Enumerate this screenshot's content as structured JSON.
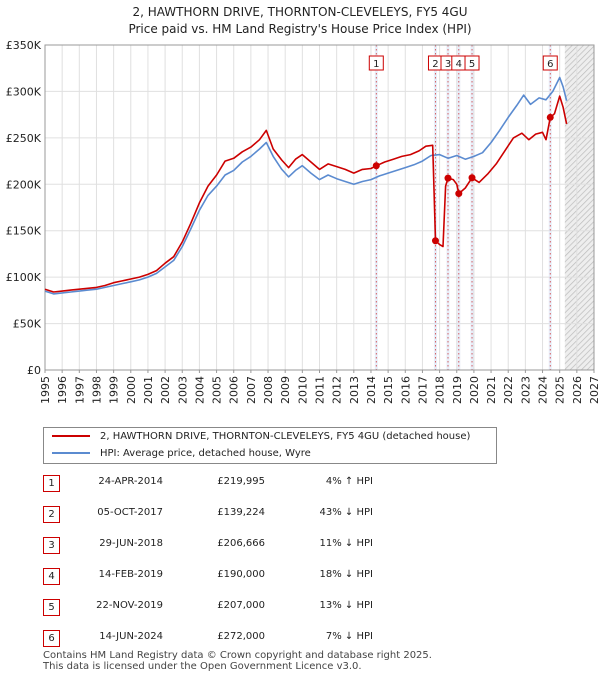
{
  "title_line1": "2, HAWTHORN DRIVE, THORNTON-CLEVELEYS, FY5 4GU",
  "title_line2": "Price paid vs. HM Land Registry's House Price Index (HPI)",
  "chart_data": {
    "type": "line",
    "xlim": [
      1995,
      2027
    ],
    "ylim": [
      0,
      350000
    ],
    "y_ticks": [
      0,
      50000,
      100000,
      150000,
      200000,
      250000,
      300000,
      350000
    ],
    "y_tick_labels": [
      "£0",
      "£50K",
      "£100K",
      "£150K",
      "£200K",
      "£250K",
      "£300K",
      "£350K"
    ],
    "x_ticks": [
      1995,
      1996,
      1997,
      1998,
      1999,
      2000,
      2001,
      2002,
      2003,
      2004,
      2005,
      2006,
      2007,
      2008,
      2009,
      2010,
      2011,
      2012,
      2013,
      2014,
      2015,
      2016,
      2017,
      2018,
      2019,
      2020,
      2021,
      2022,
      2023,
      2024,
      2025,
      2026,
      2027
    ],
    "x_tick_labels": [
      "1995",
      "1996",
      "1997",
      "1998",
      "1999",
      "2000",
      "2001",
      "2002",
      "2003",
      "2004",
      "2005",
      "2006",
      "2007",
      "2008",
      "2009",
      "2010",
      "2011",
      "2012",
      "2013",
      "2014",
      "2015",
      "2016",
      "2017",
      "2018",
      "2019",
      "2020",
      "2021",
      "2022",
      "2023",
      "2024",
      "2025",
      "2026",
      "2027"
    ],
    "future_shade_from": 2025.3,
    "series": [
      {
        "name": "2, HAWTHORN DRIVE, THORNTON-CLEVELEYS, FY5 4GU (detached house)",
        "color": "#cc0000",
        "points": [
          [
            1995.0,
            87000
          ],
          [
            1995.5,
            84000
          ],
          [
            1996.0,
            85000
          ],
          [
            1996.5,
            86000
          ],
          [
            1997.0,
            87000
          ],
          [
            1997.5,
            88000
          ],
          [
            1998.0,
            89000
          ],
          [
            1998.5,
            91000
          ],
          [
            1999.0,
            94000
          ],
          [
            1999.5,
            96000
          ],
          [
            2000.0,
            98000
          ],
          [
            2000.5,
            100000
          ],
          [
            2001.0,
            103000
          ],
          [
            2001.5,
            107000
          ],
          [
            2002.0,
            115000
          ],
          [
            2002.5,
            122000
          ],
          [
            2003.0,
            138000
          ],
          [
            2003.5,
            158000
          ],
          [
            2004.0,
            180000
          ],
          [
            2004.5,
            198000
          ],
          [
            2005.0,
            210000
          ],
          [
            2005.5,
            225000
          ],
          [
            2006.0,
            228000
          ],
          [
            2006.5,
            235000
          ],
          [
            2007.0,
            240000
          ],
          [
            2007.5,
            248000
          ],
          [
            2007.9,
            258000
          ],
          [
            2008.3,
            238000
          ],
          [
            2008.8,
            226000
          ],
          [
            2009.2,
            218000
          ],
          [
            2009.6,
            227000
          ],
          [
            2010.0,
            232000
          ],
          [
            2010.5,
            224000
          ],
          [
            2011.0,
            216000
          ],
          [
            2011.5,
            222000
          ],
          [
            2012.0,
            219000
          ],
          [
            2012.5,
            216000
          ],
          [
            2013.0,
            212000
          ],
          [
            2013.5,
            216000
          ],
          [
            2014.0,
            217000
          ],
          [
            2014.31,
            219995
          ],
          [
            2014.8,
            224000
          ],
          [
            2015.3,
            227000
          ],
          [
            2015.8,
            230000
          ],
          [
            2016.3,
            232000
          ],
          [
            2016.8,
            236000
          ],
          [
            2017.2,
            241000
          ],
          [
            2017.6,
            242000
          ],
          [
            2017.76,
            139224
          ],
          [
            2018.0,
            135000
          ],
          [
            2018.2,
            133000
          ],
          [
            2018.35,
            198000
          ],
          [
            2018.49,
            206666
          ],
          [
            2018.8,
            205000
          ],
          [
            2019.0,
            200000
          ],
          [
            2019.12,
            190000
          ],
          [
            2019.5,
            196000
          ],
          [
            2019.89,
            207000
          ],
          [
            2020.3,
            202000
          ],
          [
            2020.8,
            211000
          ],
          [
            2021.3,
            222000
          ],
          [
            2021.8,
            236000
          ],
          [
            2022.3,
            250000
          ],
          [
            2022.8,
            255000
          ],
          [
            2023.2,
            248000
          ],
          [
            2023.6,
            254000
          ],
          [
            2024.0,
            256000
          ],
          [
            2024.2,
            248000
          ],
          [
            2024.45,
            272000
          ],
          [
            2024.7,
            276000
          ],
          [
            2025.0,
            295000
          ],
          [
            2025.2,
            283000
          ],
          [
            2025.4,
            265000
          ]
        ]
      },
      {
        "name": "HPI: Average price, detached house, Wyre",
        "color": "#5b8bd0",
        "points": [
          [
            1995.0,
            85000
          ],
          [
            1995.5,
            82000
          ],
          [
            1996.0,
            83000
          ],
          [
            1996.5,
            84000
          ],
          [
            1997.0,
            85000
          ],
          [
            1997.5,
            86000
          ],
          [
            1998.0,
            87000
          ],
          [
            1998.5,
            89000
          ],
          [
            1999.0,
            91000
          ],
          [
            1999.5,
            93000
          ],
          [
            2000.0,
            95000
          ],
          [
            2000.5,
            97000
          ],
          [
            2001.0,
            100000
          ],
          [
            2001.5,
            104000
          ],
          [
            2002.0,
            111000
          ],
          [
            2002.5,
            118000
          ],
          [
            2003.0,
            133000
          ],
          [
            2003.5,
            152000
          ],
          [
            2004.0,
            172000
          ],
          [
            2004.5,
            188000
          ],
          [
            2005.0,
            198000
          ],
          [
            2005.5,
            210000
          ],
          [
            2006.0,
            215000
          ],
          [
            2006.5,
            224000
          ],
          [
            2007.0,
            230000
          ],
          [
            2007.5,
            238000
          ],
          [
            2007.9,
            245000
          ],
          [
            2008.3,
            230000
          ],
          [
            2008.8,
            216000
          ],
          [
            2009.2,
            208000
          ],
          [
            2009.6,
            215000
          ],
          [
            2010.0,
            220000
          ],
          [
            2010.5,
            212000
          ],
          [
            2011.0,
            205000
          ],
          [
            2011.5,
            210000
          ],
          [
            2012.0,
            206000
          ],
          [
            2012.5,
            203000
          ],
          [
            2013.0,
            200000
          ],
          [
            2013.5,
            203000
          ],
          [
            2014.0,
            205000
          ],
          [
            2014.5,
            209000
          ],
          [
            2015.0,
            212000
          ],
          [
            2015.5,
            215000
          ],
          [
            2016.0,
            218000
          ],
          [
            2016.5,
            221000
          ],
          [
            2017.0,
            225000
          ],
          [
            2017.5,
            231000
          ],
          [
            2018.0,
            232000
          ],
          [
            2018.5,
            228000
          ],
          [
            2019.0,
            231000
          ],
          [
            2019.5,
            227000
          ],
          [
            2020.0,
            230000
          ],
          [
            2020.5,
            234000
          ],
          [
            2021.0,
            245000
          ],
          [
            2021.5,
            258000
          ],
          [
            2022.0,
            272000
          ],
          [
            2022.5,
            285000
          ],
          [
            2022.9,
            296000
          ],
          [
            2023.3,
            286000
          ],
          [
            2023.8,
            293000
          ],
          [
            2024.2,
            291000
          ],
          [
            2024.6,
            300000
          ],
          [
            2025.0,
            315000
          ],
          [
            2025.2,
            305000
          ],
          [
            2025.4,
            290000
          ]
        ]
      }
    ],
    "transactions": [
      {
        "label": "1",
        "x": 2014.31,
        "y": 219995,
        "date": "24-APR-2014",
        "price": "£219,995",
        "hpi": "4% ↑ HPI"
      },
      {
        "label": "2",
        "x": 2017.76,
        "y": 139224,
        "date": "05-OCT-2017",
        "price": "£139,224",
        "hpi": "43% ↓ HPI"
      },
      {
        "label": "3",
        "x": 2018.49,
        "y": 206666,
        "date": "29-JUN-2018",
        "price": "£206,666",
        "hpi": "11% ↓ HPI"
      },
      {
        "label": "4",
        "x": 2019.12,
        "y": 190000,
        "date": "14-FEB-2019",
        "price": "£190,000",
        "hpi": "18% ↓ HPI"
      },
      {
        "label": "5",
        "x": 2019.89,
        "y": 207000,
        "date": "22-NOV-2019",
        "price": "£207,000",
        "hpi": "13% ↓ HPI"
      },
      {
        "label": "6",
        "x": 2024.45,
        "y": 272000,
        "date": "14-JUN-2024",
        "price": "£272,000",
        "hpi": "7% ↓ HPI"
      }
    ]
  },
  "legend": {
    "property_label": "2, HAWTHORN DRIVE, THORNTON-CLEVELEYS, FY5 4GU (detached house)",
    "hpi_label": "HPI: Average price, detached house, Wyre"
  },
  "footer_line1": "Contains HM Land Registry data © Crown copyright and database right 2025.",
  "footer_line2": "This data is licensed under the Open Government Licence v3.0."
}
